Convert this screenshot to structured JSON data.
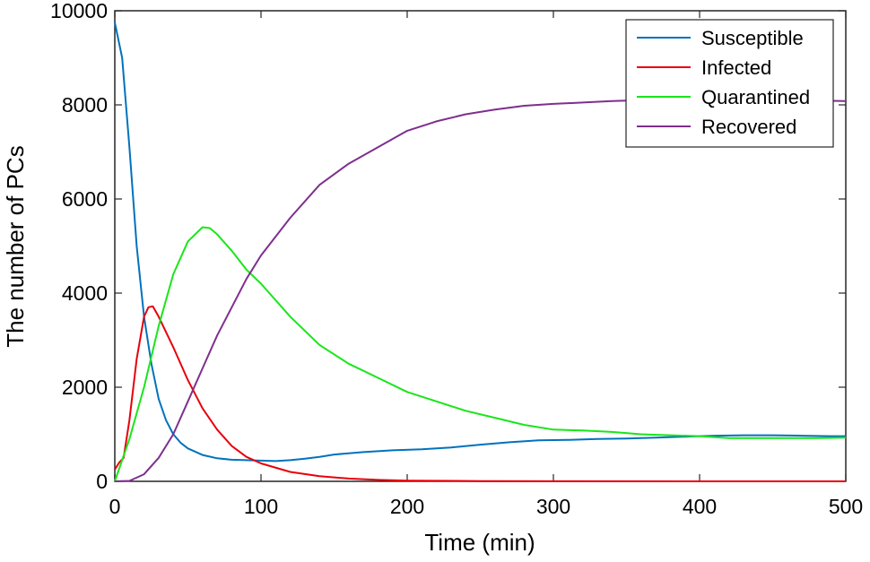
{
  "chart_data": {
    "type": "line",
    "title": "",
    "xlabel": "Time (min)",
    "ylabel": "The number of PCs",
    "xlim": [
      0,
      500
    ],
    "ylim": [
      0,
      10000
    ],
    "xticks": [
      0,
      100,
      200,
      300,
      400,
      500
    ],
    "yticks": [
      0,
      2000,
      4000,
      6000,
      8000,
      10000
    ],
    "grid": false,
    "legend_position": "top-right",
    "series": [
      {
        "name": "Susceptible",
        "color": "#0072BD",
        "points": [
          [
            0,
            9750
          ],
          [
            5,
            9000
          ],
          [
            10,
            7100
          ],
          [
            15,
            5000
          ],
          [
            20,
            3500
          ],
          [
            25,
            2500
          ],
          [
            30,
            1750
          ],
          [
            35,
            1300
          ],
          [
            40,
            1000
          ],
          [
            45,
            820
          ],
          [
            50,
            700
          ],
          [
            60,
            560
          ],
          [
            70,
            490
          ],
          [
            80,
            460
          ],
          [
            90,
            450
          ],
          [
            100,
            440
          ],
          [
            110,
            430
          ],
          [
            120,
            450
          ],
          [
            130,
            480
          ],
          [
            140,
            520
          ],
          [
            150,
            570
          ],
          [
            170,
            620
          ],
          [
            190,
            660
          ],
          [
            210,
            680
          ],
          [
            230,
            720
          ],
          [
            250,
            780
          ],
          [
            270,
            830
          ],
          [
            290,
            870
          ],
          [
            310,
            880
          ],
          [
            330,
            900
          ],
          [
            350,
            910
          ],
          [
            370,
            930
          ],
          [
            390,
            950
          ],
          [
            410,
            970
          ],
          [
            430,
            980
          ],
          [
            450,
            980
          ],
          [
            470,
            970
          ],
          [
            490,
            960
          ],
          [
            500,
            960
          ]
        ]
      },
      {
        "name": "Infected",
        "color": "#E8000B",
        "points": [
          [
            0,
            250
          ],
          [
            3,
            400
          ],
          [
            6,
            500
          ],
          [
            10,
            1300
          ],
          [
            15,
            2600
          ],
          [
            20,
            3500
          ],
          [
            23,
            3700
          ],
          [
            26,
            3720
          ],
          [
            30,
            3500
          ],
          [
            40,
            2850
          ],
          [
            50,
            2150
          ],
          [
            60,
            1550
          ],
          [
            70,
            1100
          ],
          [
            80,
            750
          ],
          [
            90,
            520
          ],
          [
            100,
            380
          ],
          [
            120,
            200
          ],
          [
            140,
            110
          ],
          [
            160,
            60
          ],
          [
            180,
            30
          ],
          [
            200,
            15
          ],
          [
            250,
            5
          ],
          [
            300,
            2
          ],
          [
            400,
            0
          ],
          [
            500,
            0
          ]
        ]
      },
      {
        "name": "Quarantined",
        "color": "#19E619",
        "points": [
          [
            0,
            0
          ],
          [
            10,
            900
          ],
          [
            20,
            2000
          ],
          [
            30,
            3300
          ],
          [
            40,
            4400
          ],
          [
            50,
            5100
          ],
          [
            60,
            5400
          ],
          [
            65,
            5380
          ],
          [
            70,
            5250
          ],
          [
            80,
            4900
          ],
          [
            90,
            4500
          ],
          [
            100,
            4200
          ],
          [
            120,
            3500
          ],
          [
            140,
            2900
          ],
          [
            160,
            2500
          ],
          [
            180,
            2200
          ],
          [
            200,
            1900
          ],
          [
            220,
            1700
          ],
          [
            240,
            1500
          ],
          [
            260,
            1350
          ],
          [
            280,
            1200
          ],
          [
            300,
            1100
          ],
          [
            320,
            1080
          ],
          [
            340,
            1050
          ],
          [
            360,
            1000
          ],
          [
            380,
            980
          ],
          [
            400,
            960
          ],
          [
            420,
            920
          ],
          [
            440,
            920
          ],
          [
            460,
            920
          ],
          [
            480,
            920
          ],
          [
            500,
            930
          ]
        ]
      },
      {
        "name": "Recovered",
        "color": "#7E2F8E",
        "points": [
          [
            0,
            0
          ],
          [
            10,
            10
          ],
          [
            20,
            150
          ],
          [
            30,
            500
          ],
          [
            40,
            1000
          ],
          [
            50,
            1700
          ],
          [
            60,
            2400
          ],
          [
            70,
            3100
          ],
          [
            80,
            3700
          ],
          [
            90,
            4300
          ],
          [
            100,
            4800
          ],
          [
            120,
            5600
          ],
          [
            140,
            6300
          ],
          [
            160,
            6750
          ],
          [
            180,
            7100
          ],
          [
            200,
            7450
          ],
          [
            220,
            7650
          ],
          [
            240,
            7800
          ],
          [
            260,
            7900
          ],
          [
            280,
            7980
          ],
          [
            300,
            8020
          ],
          [
            320,
            8050
          ],
          [
            340,
            8080
          ],
          [
            360,
            8100
          ],
          [
            380,
            8110
          ],
          [
            400,
            8120
          ],
          [
            420,
            8120
          ],
          [
            440,
            8110
          ],
          [
            460,
            8100
          ],
          [
            480,
            8090
          ],
          [
            500,
            8080
          ]
        ]
      }
    ]
  }
}
